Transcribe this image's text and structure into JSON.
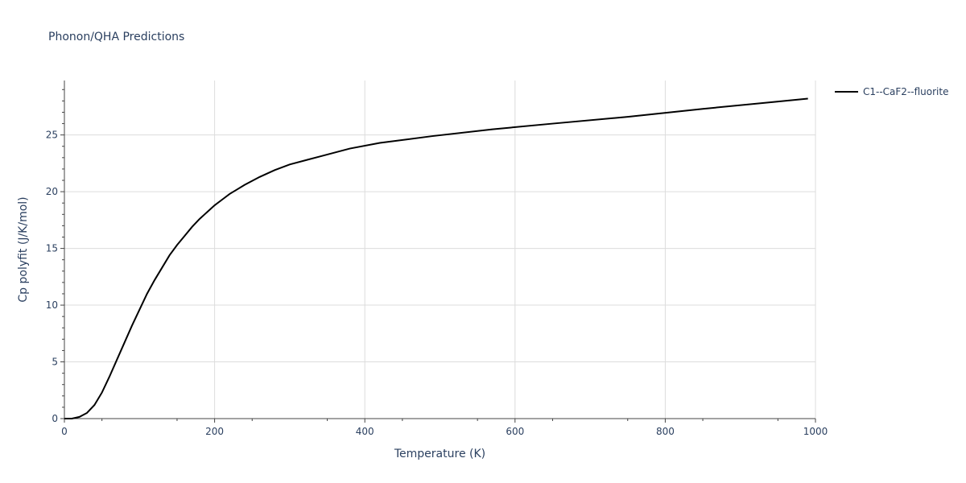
{
  "chart_data": {
    "type": "line",
    "title": "Phonon/QHA Predictions",
    "xlabel": "Temperature (K)",
    "ylabel": "Cp polyfit (J/K/mol)",
    "xlim": [
      0,
      1000
    ],
    "ylim": [
      0,
      29.8
    ],
    "x_ticks": [
      0,
      200,
      400,
      600,
      800,
      1000
    ],
    "x_tick_labels": [
      "0",
      "200",
      "400",
      "600",
      "800",
      "1000"
    ],
    "y_ticks": [
      0,
      5,
      10,
      15,
      20,
      25
    ],
    "y_tick_labels": [
      "0",
      "5",
      "10",
      "15",
      "20",
      "25"
    ],
    "grid": true,
    "legend_position": "top-right",
    "series": [
      {
        "name": "C1--CaF2--fluorite",
        "color": "#000000",
        "x": [
          0,
          10,
          20,
          30,
          40,
          50,
          60,
          70,
          80,
          90,
          100,
          110,
          120,
          130,
          140,
          150,
          160,
          170,
          180,
          190,
          200,
          210,
          220,
          230,
          240,
          260,
          280,
          300,
          340,
          380,
          420,
          490,
          570,
          650,
          750,
          850,
          990
        ],
        "y": [
          0,
          0,
          0.15,
          0.5,
          1.2,
          2.3,
          3.7,
          5.2,
          6.7,
          8.2,
          9.6,
          11.0,
          12.2,
          13.3,
          14.4,
          15.3,
          16.1,
          16.9,
          17.6,
          18.2,
          18.8,
          19.3,
          19.8,
          20.2,
          20.6,
          21.3,
          21.9,
          22.4,
          23.1,
          23.8,
          24.3,
          24.9,
          25.5,
          26.0,
          26.6,
          27.3,
          28.2
        ]
      }
    ]
  }
}
